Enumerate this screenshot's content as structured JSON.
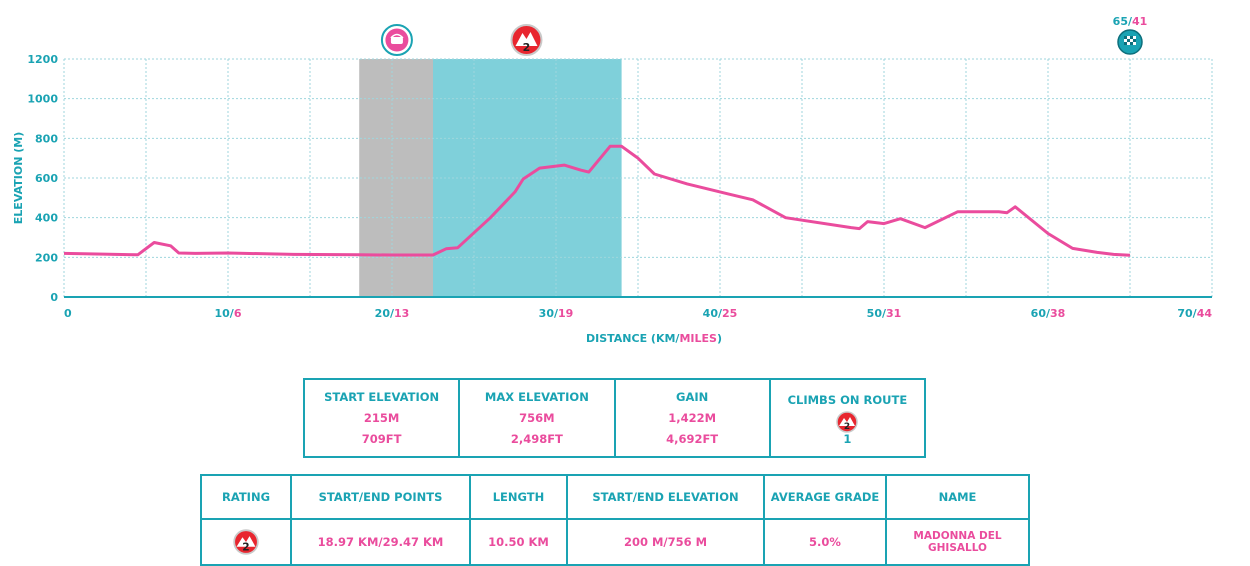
{
  "chart_data": {
    "type": "area",
    "ylabel": "ELEVATION (M)",
    "xlabel_parts": [
      "DISTANCE (KM/",
      "MILES",
      ")"
    ],
    "xlim": [
      0,
      70
    ],
    "ylim": [
      0,
      1200
    ],
    "y_ticks": [
      0,
      200,
      400,
      600,
      800,
      1000,
      1200
    ],
    "x_ticks": [
      {
        "km": 0,
        "label_km": "0",
        "label_mi": ""
      },
      {
        "km": 10,
        "label_km": "10/",
        "label_mi": "6"
      },
      {
        "km": 20,
        "label_km": "20/",
        "label_mi": "13"
      },
      {
        "km": 30,
        "label_km": "30/",
        "label_mi": "19"
      },
      {
        "km": 40,
        "label_km": "40/",
        "label_mi": "25"
      },
      {
        "km": 50,
        "label_km": "50/",
        "label_mi": "31"
      },
      {
        "km": 60,
        "label_km": "60/",
        "label_mi": "38"
      },
      {
        "km": 70,
        "label_km": "70/",
        "label_mi": "44"
      }
    ],
    "profile": [
      [
        0,
        220
      ],
      [
        2,
        217
      ],
      [
        4.5,
        213
      ],
      [
        5.5,
        275
      ],
      [
        6.5,
        258
      ],
      [
        7,
        222
      ],
      [
        8,
        220
      ],
      [
        10,
        222
      ],
      [
        14,
        215
      ],
      [
        18,
        213
      ],
      [
        20,
        212
      ],
      [
        22.5,
        212
      ],
      [
        23.3,
        243
      ],
      [
        24,
        248
      ],
      [
        26,
        400
      ],
      [
        27.5,
        530
      ],
      [
        28,
        595
      ],
      [
        29,
        650
      ],
      [
        30.5,
        665
      ],
      [
        31.5,
        640
      ],
      [
        32,
        630
      ],
      [
        33.3,
        760
      ],
      [
        34,
        760
      ],
      [
        35,
        700
      ],
      [
        36,
        620
      ],
      [
        38,
        570
      ],
      [
        40.5,
        520
      ],
      [
        42,
        490
      ],
      [
        44,
        400
      ],
      [
        48,
        350
      ],
      [
        48.5,
        345
      ],
      [
        49,
        380
      ],
      [
        50,
        370
      ],
      [
        51,
        395
      ],
      [
        52.5,
        350
      ],
      [
        54.5,
        430
      ],
      [
        57,
        430
      ],
      [
        57.5,
        425
      ],
      [
        58,
        455
      ],
      [
        60,
        320
      ],
      [
        61.5,
        245
      ],
      [
        63,
        225
      ],
      [
        64,
        215
      ],
      [
        65,
        210
      ]
    ],
    "shaded_regions": [
      {
        "from_km": 18,
        "to_km": 22.5,
        "color": "#bdbdbd"
      },
      {
        "from_km": 22.5,
        "to_km": 34,
        "color": "#7fd0da"
      }
    ],
    "markers": [
      {
        "km": 20.3,
        "icon": "cafe-stop-icon"
      },
      {
        "km": 28.2,
        "icon": "climb-category-icon",
        "label": "2"
      },
      {
        "km": 65,
        "icon": "finish-flag-icon",
        "label_km": "65/",
        "label_mi": "41"
      }
    ],
    "colors": {
      "teal": "#1aa3b3",
      "pink": "#ea4c9d",
      "grid": "#9fd6dd"
    }
  },
  "summary": {
    "start_elevation": {
      "label": "START ELEVATION",
      "m": "215M",
      "ft": "709FT"
    },
    "max_elevation": {
      "label": "MAX ELEVATION",
      "m": "756M",
      "ft": "2,498FT"
    },
    "gain": {
      "label": "GAIN",
      "m": "1,422M",
      "ft": "4,692FT"
    },
    "climbs": {
      "label": "CLIMBS ON ROUTE",
      "badge": "2",
      "count": "1"
    }
  },
  "climbs_table": {
    "headers": {
      "rating": "RATING",
      "points": "START/END POINTS",
      "length": "LENGTH",
      "elevation": "START/END ELEVATION",
      "grade": "AVERAGE GRADE",
      "name": "NAME"
    },
    "rows": [
      {
        "rating": "2",
        "points": "18.97 KM/29.47 KM",
        "length": "10.50 KM",
        "elevation": "200 M/756 M",
        "grade": "5.0%",
        "name": "MADONNA DEL GHISALLO"
      }
    ]
  }
}
